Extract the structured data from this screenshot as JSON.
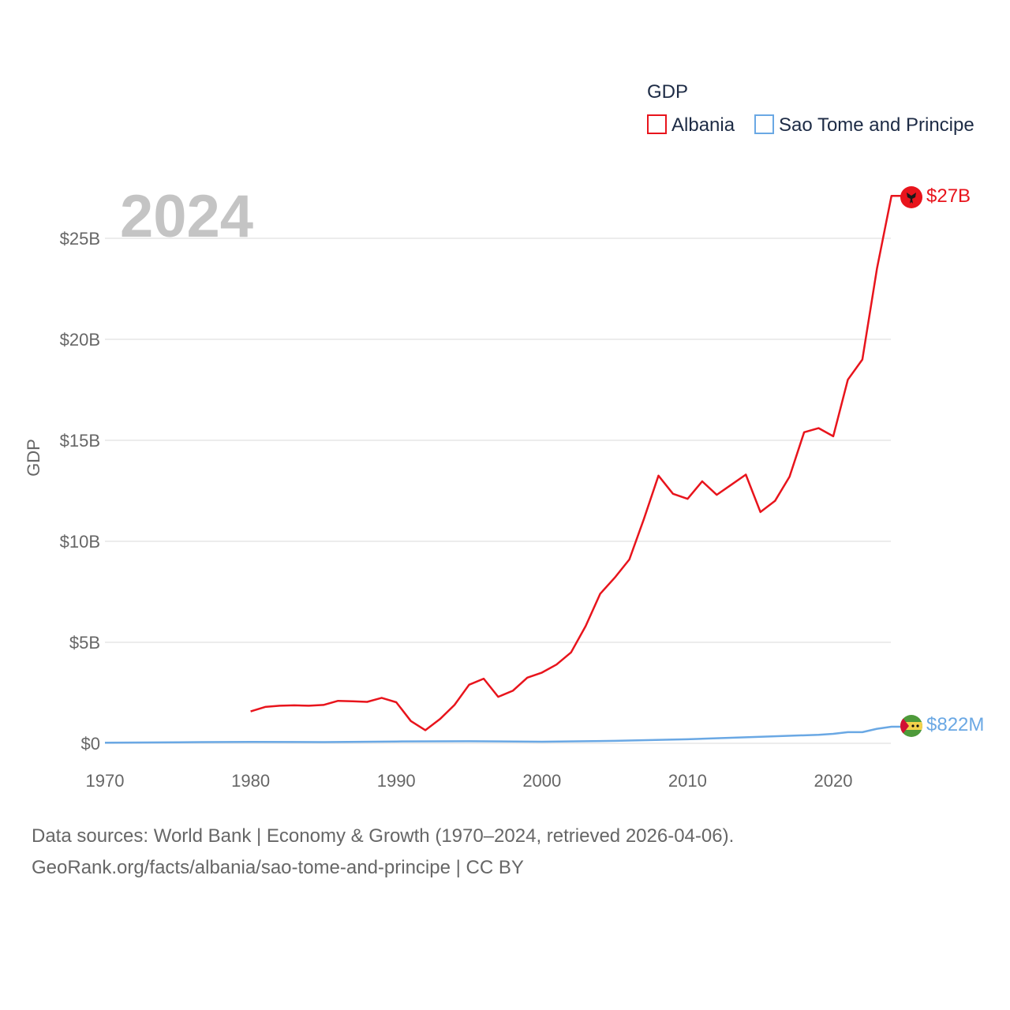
{
  "chart_data": {
    "type": "line",
    "year_overlay": "2024",
    "ylabel": "GDP",
    "xlim": [
      1970,
      2024
    ],
    "ylim": [
      0,
      27.5
    ],
    "y_ticks": [
      {
        "value": 0,
        "label": "$0"
      },
      {
        "value": 5,
        "label": "$5B"
      },
      {
        "value": 10,
        "label": "$10B"
      },
      {
        "value": 15,
        "label": "$15B"
      },
      {
        "value": 20,
        "label": "$20B"
      },
      {
        "value": 25,
        "label": "$25B"
      }
    ],
    "x_ticks": [
      {
        "value": 1970,
        "label": "1970"
      },
      {
        "value": 1980,
        "label": "1980"
      },
      {
        "value": 1990,
        "label": "1990"
      },
      {
        "value": 2000,
        "label": "2000"
      },
      {
        "value": 2010,
        "label": "2010"
      },
      {
        "value": 2020,
        "label": "2020"
      }
    ],
    "legend": {
      "title": "GDP"
    },
    "series": [
      {
        "name": "Albania",
        "color": "#e8141c",
        "end_label": "$27B",
        "flag_icon": "albania-flag-icon",
        "x": [
          1980,
          1981,
          1982,
          1983,
          1984,
          1985,
          1986,
          1987,
          1988,
          1989,
          1990,
          1991,
          1992,
          1993,
          1994,
          1995,
          1996,
          1997,
          1998,
          1999,
          2000,
          2001,
          2002,
          2003,
          2004,
          2005,
          2006,
          2007,
          2008,
          2009,
          2010,
          2011,
          2012,
          2013,
          2014,
          2015,
          2016,
          2017,
          2018,
          2019,
          2020,
          2021,
          2022,
          2023,
          2024
        ],
        "values": [
          1.58,
          1.8,
          1.86,
          1.88,
          1.86,
          1.9,
          2.1,
          2.08,
          2.05,
          2.25,
          2.03,
          1.1,
          0.65,
          1.2,
          1.9,
          2.9,
          3.2,
          2.3,
          2.6,
          3.25,
          3.5,
          3.9,
          4.5,
          5.8,
          7.4,
          8.2,
          9.1,
          11.1,
          13.25,
          12.35,
          12.1,
          12.97,
          12.3,
          12.8,
          13.3,
          11.45,
          12,
          13.2,
          15.4,
          15.6,
          15.2,
          18,
          19,
          23.5,
          27.1
        ]
      },
      {
        "name": "Sao Tome and Principe",
        "color": "#6aa8e4",
        "end_label": "$822M",
        "flag_icon": "sao-tome-flag-icon",
        "x": [
          1970,
          1975,
          1980,
          1985,
          1990,
          1995,
          2000,
          2005,
          2010,
          2015,
          2019,
          2020,
          2021,
          2022,
          2023,
          2024
        ],
        "values": [
          0.03,
          0.05,
          0.07,
          0.06,
          0.09,
          0.1,
          0.08,
          0.12,
          0.2,
          0.32,
          0.42,
          0.47,
          0.55,
          0.55,
          0.72,
          0.822
        ]
      }
    ]
  },
  "footer": {
    "line1": "Data sources: World Bank | Economy & Growth (1970–2024, retrieved 2026-04-06).",
    "line2": "GeoRank.org/facts/albania/sao-tome-and-principe | CC BY"
  }
}
